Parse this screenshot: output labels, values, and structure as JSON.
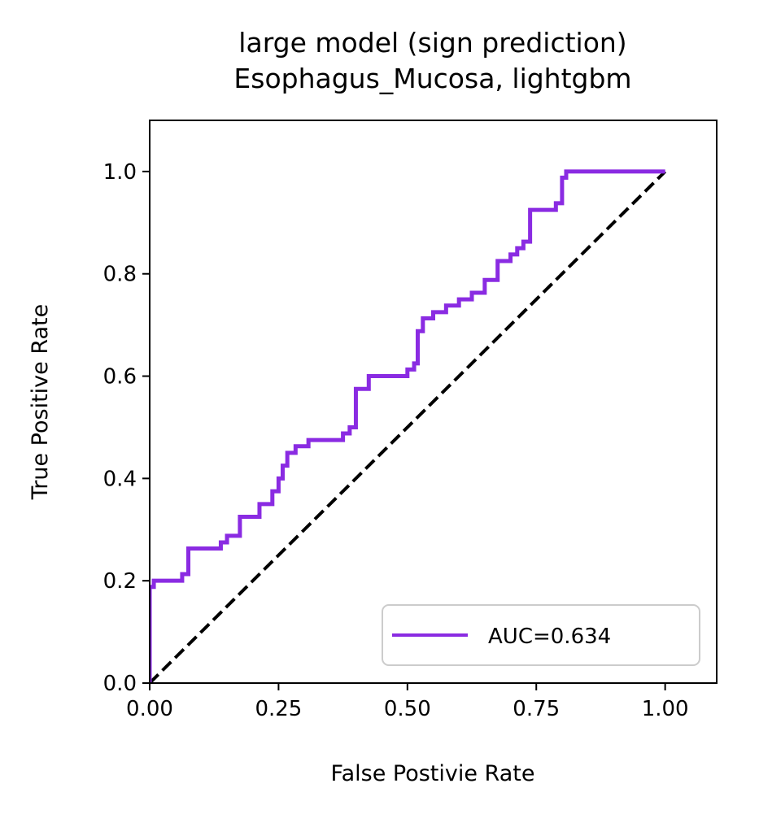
{
  "chart_data": {
    "type": "line",
    "title": [
      "large model (sign prediction)",
      "Esophagus_Mucosa, lightgbm"
    ],
    "xlabel": "False Postivie Rate",
    "ylabel": "True Positive Rate",
    "xlim": [
      0,
      1.1
    ],
    "ylim": [
      0,
      1.1
    ],
    "xticks": [
      0.0,
      0.25,
      0.5,
      0.75,
      1.0
    ],
    "xtick_labels": [
      "0.00",
      "0.25",
      "0.50",
      "0.75",
      "1.00"
    ],
    "yticks": [
      0.0,
      0.2,
      0.4,
      0.6,
      0.8,
      1.0
    ],
    "ytick_labels": [
      "0.0",
      "0.2",
      "0.4",
      "0.6",
      "0.8",
      "1.0"
    ],
    "grid": false,
    "legend_position": "lower-right",
    "series": [
      {
        "name": "AUC=0.634",
        "color": "#8a2be2",
        "style": "solid",
        "points": [
          [
            0.0,
            0.0
          ],
          [
            0.0,
            0.188
          ],
          [
            0.008,
            0.188
          ],
          [
            0.008,
            0.2
          ],
          [
            0.063,
            0.2
          ],
          [
            0.063,
            0.213
          ],
          [
            0.075,
            0.213
          ],
          [
            0.075,
            0.263
          ],
          [
            0.138,
            0.263
          ],
          [
            0.138,
            0.275
          ],
          [
            0.15,
            0.275
          ],
          [
            0.15,
            0.288
          ],
          [
            0.175,
            0.288
          ],
          [
            0.175,
            0.325
          ],
          [
            0.213,
            0.325
          ],
          [
            0.213,
            0.35
          ],
          [
            0.238,
            0.35
          ],
          [
            0.238,
            0.375
          ],
          [
            0.25,
            0.375
          ],
          [
            0.25,
            0.4
          ],
          [
            0.258,
            0.4
          ],
          [
            0.258,
            0.425
          ],
          [
            0.267,
            0.425
          ],
          [
            0.267,
            0.45
          ],
          [
            0.283,
            0.45
          ],
          [
            0.283,
            0.463
          ],
          [
            0.308,
            0.463
          ],
          [
            0.308,
            0.475
          ],
          [
            0.375,
            0.475
          ],
          [
            0.375,
            0.488
          ],
          [
            0.388,
            0.488
          ],
          [
            0.388,
            0.5
          ],
          [
            0.4,
            0.5
          ],
          [
            0.4,
            0.575
          ],
          [
            0.425,
            0.575
          ],
          [
            0.425,
            0.6
          ],
          [
            0.5,
            0.6
          ],
          [
            0.5,
            0.613
          ],
          [
            0.513,
            0.613
          ],
          [
            0.513,
            0.625
          ],
          [
            0.52,
            0.625
          ],
          [
            0.52,
            0.688
          ],
          [
            0.53,
            0.688
          ],
          [
            0.53,
            0.713
          ],
          [
            0.55,
            0.713
          ],
          [
            0.55,
            0.725
          ],
          [
            0.575,
            0.725
          ],
          [
            0.575,
            0.738
          ],
          [
            0.6,
            0.738
          ],
          [
            0.6,
            0.75
          ],
          [
            0.625,
            0.75
          ],
          [
            0.625,
            0.763
          ],
          [
            0.65,
            0.763
          ],
          [
            0.65,
            0.788
          ],
          [
            0.675,
            0.788
          ],
          [
            0.675,
            0.825
          ],
          [
            0.7,
            0.825
          ],
          [
            0.7,
            0.838
          ],
          [
            0.713,
            0.838
          ],
          [
            0.713,
            0.85
          ],
          [
            0.725,
            0.85
          ],
          [
            0.725,
            0.863
          ],
          [
            0.738,
            0.863
          ],
          [
            0.738,
            0.925
          ],
          [
            0.788,
            0.925
          ],
          [
            0.788,
            0.938
          ],
          [
            0.8,
            0.938
          ],
          [
            0.8,
            0.988
          ],
          [
            0.808,
            0.988
          ],
          [
            0.808,
            1.0
          ],
          [
            1.0,
            1.0
          ]
        ]
      },
      {
        "name": "",
        "color": "#000000",
        "style": "dashed",
        "points": [
          [
            0.0,
            0.0
          ],
          [
            1.0,
            1.0
          ]
        ]
      }
    ]
  }
}
